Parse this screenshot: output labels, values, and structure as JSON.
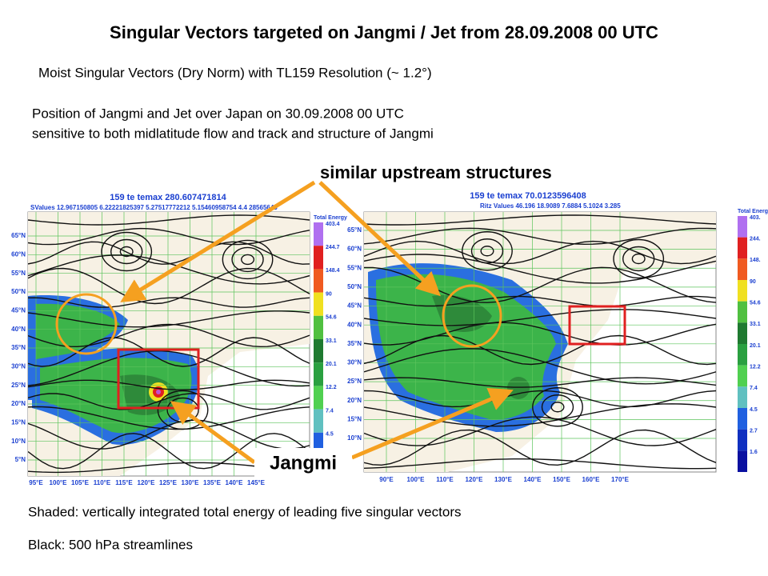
{
  "title": "Singular Vectors targeted on Jangmi / Jet from 28.09.2008 00 UTC",
  "subtitle": "Moist Singular Vectors (Dry Norm) with TL159 Resolution (~ 1.2°)",
  "description": [
    "Position of Jangmi and Jet over Japan on 30.09.2008 00 UTC",
    "sensitive to both midlatitude flow and track and structure of Jangmi"
  ],
  "annotations": {
    "upstream": "similar upstream structures",
    "jangmi": "Jangmi"
  },
  "maps": [
    {
      "title": "159 te temax 280.607471814",
      "subtitle": "SValues 12.967150805 6.22221825397 5.27517772212 5.15460958754 4.4 28565643",
      "legend_title": "Total Energy",
      "legend_values": [
        "403.4",
        "244.7",
        "148.4",
        "90",
        "54.6",
        "33.1",
        "20.1",
        "12.2",
        "7.4",
        "4.5"
      ],
      "lat_labels": [
        "65°N",
        "60°N",
        "55°N",
        "50°N",
        "45°N",
        "40°N",
        "35°N",
        "30°N",
        "25°N",
        "20°N",
        "15°N",
        "10°N",
        "5°N"
      ],
      "lon_labels": [
        "95°E",
        "100°E",
        "105°E",
        "110°E",
        "115°E",
        "120°E",
        "125°E",
        "130°E",
        "135°E",
        "140°E",
        "145°E"
      ]
    },
    {
      "title": "159 te temax 70.0123596408",
      "subtitle": "Ritz Values 46.196 18.9089 7.6884 5.1024 3.285",
      "legend_title": "Total Energy",
      "legend_values": [
        "403.",
        "244.",
        "148.",
        "90",
        "54.6",
        "33.1",
        "20.1",
        "12.2",
        "7.4",
        "4.5",
        "2.7",
        "1.6"
      ],
      "lat_labels": [
        "65°N",
        "60°N",
        "55°N",
        "50°N",
        "45°N",
        "40°N",
        "35°N",
        "30°N",
        "25°N",
        "20°N",
        "15°N",
        "10°N"
      ],
      "lon_labels": [
        "90°E",
        "100°E",
        "110°E",
        "120°E",
        "130°E",
        "140°E",
        "150°E",
        "160°E",
        "170°E"
      ]
    }
  ],
  "footer": [
    "Shaded: vertically integrated total energy of leading five singular vectors",
    "Black: 500 hPa streamlines"
  ]
}
